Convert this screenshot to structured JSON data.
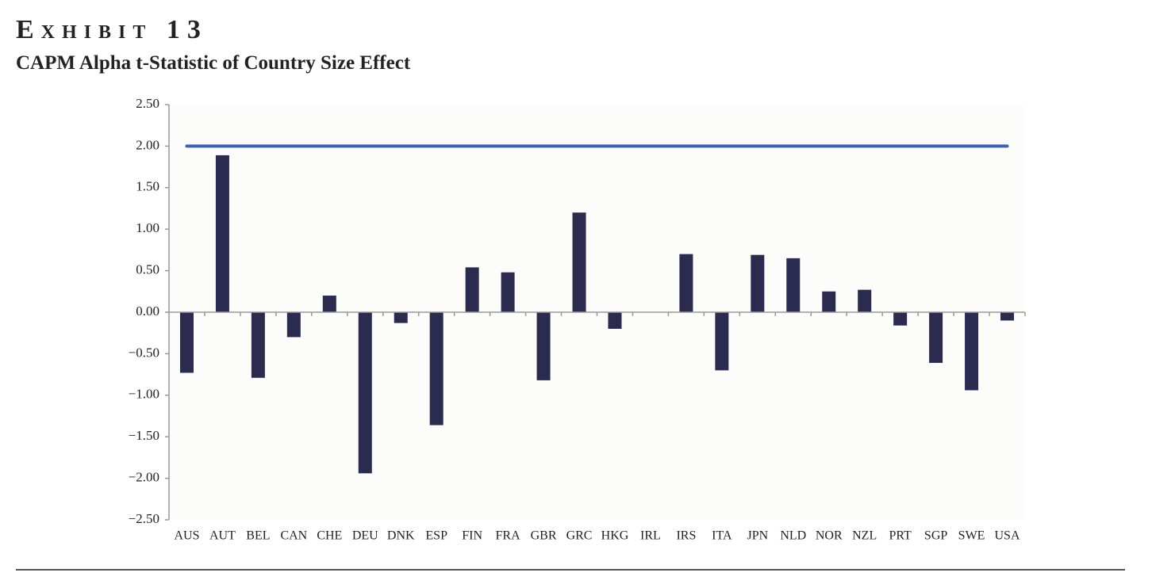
{
  "chart_data": {
    "type": "bar",
    "title": "Exhibit 13",
    "subtitle": "CAPM Alpha t-Statistic of Country Size Effect",
    "categories": [
      "AUS",
      "AUT",
      "BEL",
      "CAN",
      "CHE",
      "DEU",
      "DNK",
      "ESP",
      "FIN",
      "FRA",
      "GBR",
      "GRC",
      "HKG",
      "IRL",
      "IRS",
      "ITA",
      "JPN",
      "NLD",
      "NOR",
      "NZL",
      "PRT",
      "SGP",
      "SWE",
      "USA"
    ],
    "values": [
      -0.73,
      1.89,
      -0.79,
      -0.3,
      0.2,
      -1.94,
      -0.13,
      -1.36,
      0.54,
      0.48,
      -0.82,
      1.2,
      -0.2,
      0.0,
      0.7,
      -0.7,
      0.69,
      0.65,
      0.25,
      0.27,
      -0.16,
      -0.61,
      -0.94,
      -0.1
    ],
    "color": "#2b2a4f",
    "threshold": 2,
    "threshold_color": "#3a62b0",
    "ylim": [
      -2.5,
      2.5
    ],
    "yticks": [
      {
        "value": 2.5,
        "label": "2.50"
      },
      {
        "value": 2,
        "label": "2.00"
      },
      {
        "value": 1.5,
        "label": "1.50"
      },
      {
        "value": 1,
        "label": "1.00"
      },
      {
        "value": 0.5,
        "label": "0.50"
      },
      {
        "value": 0,
        "label": "0.00"
      },
      {
        "value": -0.5,
        "label": "−0.50"
      },
      {
        "value": -1,
        "label": "−1.00"
      },
      {
        "value": -1.5,
        "label": "−1.50"
      },
      {
        "value": -2,
        "label": "−2.00"
      },
      {
        "value": -2.5,
        "label": "−2.50"
      }
    ]
  }
}
